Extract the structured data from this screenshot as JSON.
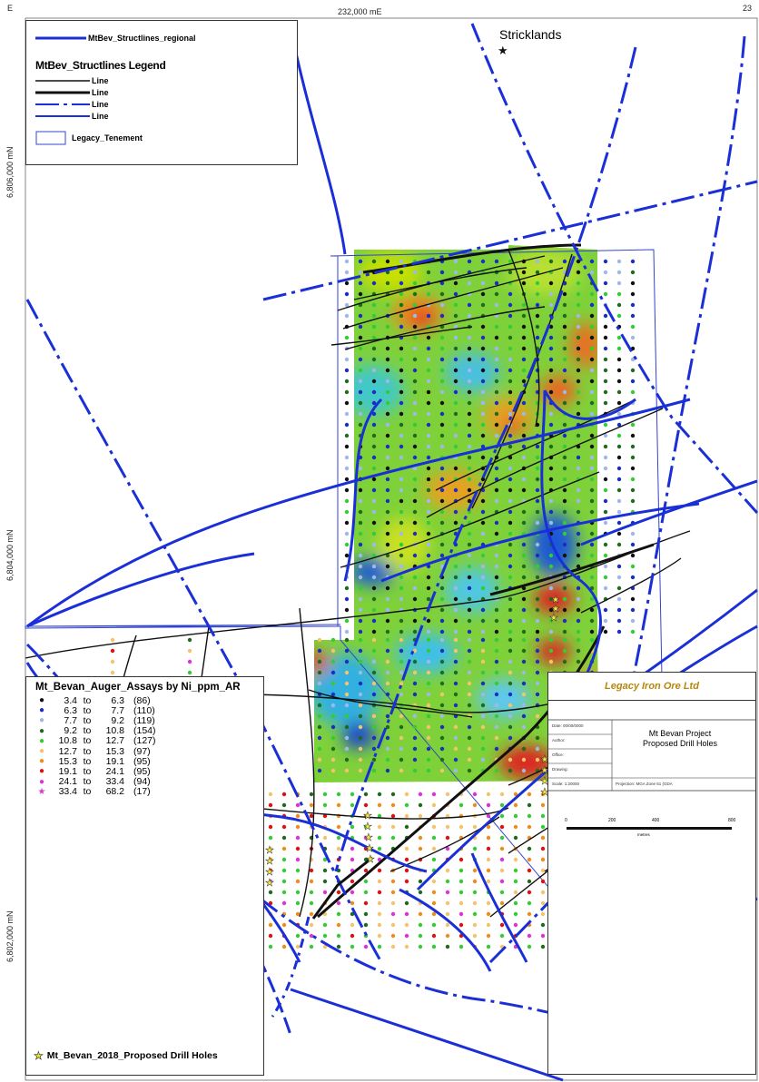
{
  "map": {
    "coordinate_labels": {
      "top_left": "E",
      "top_center": "232,000 mE",
      "top_right": "23",
      "left_upper": "6,806,000 mN",
      "left_middle": "6,804,000 mN",
      "left_lower": "6,802,000 mN"
    },
    "place_label": "Stricklands",
    "colors": {
      "structure_blue": "#1a2fd6",
      "structure_black": "#111111",
      "tenement_blue": "#3344cc"
    }
  },
  "structure_legend": {
    "regional_label": "MtBev_Structlines_regional",
    "title": "MtBev_Structlines Legend",
    "items": [
      "Line",
      "Line",
      "Line",
      "Line"
    ],
    "tenement_label": "Legacy_Tenement"
  },
  "assay_legend": {
    "title": "Mt_Bevan_Auger_Assays by Ni_ppm_AR",
    "classes": [
      {
        "from": "3.4",
        "to_word": "to",
        "to": "6.3",
        "count": "(86)",
        "color": "#111111",
        "symbol": "●"
      },
      {
        "from": "6.3",
        "to_word": "to",
        "to": "7.7",
        "count": "(110)",
        "color": "#1a2fbf",
        "symbol": "●"
      },
      {
        "from": "7.7",
        "to_word": "to",
        "to": "9.2",
        "count": "(119)",
        "color": "#9fb8e8",
        "symbol": "●"
      },
      {
        "from": "9.2",
        "to_word": "to",
        "to": "10.8",
        "count": "(154)",
        "color": "#1e6b1e",
        "symbol": "●"
      },
      {
        "from": "10.8",
        "to_word": "to",
        "to": "12.7",
        "count": "(127)",
        "color": "#33cc33",
        "symbol": "●"
      },
      {
        "from": "12.7",
        "to_word": "to",
        "to": "15.3",
        "count": "(97)",
        "color": "#f5c36b",
        "symbol": "●"
      },
      {
        "from": "15.3",
        "to_word": "to",
        "to": "19.1",
        "count": "(95)",
        "color": "#f08c1a",
        "symbol": "●"
      },
      {
        "from": "19.1",
        "to_word": "to",
        "to": "24.1",
        "count": "(95)",
        "color": "#e01010",
        "symbol": "●"
      },
      {
        "from": "24.1",
        "to_word": "to",
        "to": "33.4",
        "count": "(94)",
        "color": "#e030d8",
        "symbol": "●"
      },
      {
        "from": "33.4",
        "to_word": "to",
        "to": "68.2",
        "count": "(17)",
        "color": "#d640c8",
        "symbol": "★"
      }
    ],
    "drill_label": "Mt_Bevan_2018_Proposed Drill Holes"
  },
  "title_block": {
    "company": "Legacy Iron Ore Ltd",
    "project_line1": "Mt Bevan Project",
    "project_line2": "Proposed Drill Holes",
    "field_date": "Date: 00/00/0000",
    "field_author": "Author:",
    "field_office": "Office:",
    "field_drawing": "Drawing:",
    "field_scale": "Scale: 1:20000",
    "projection": "Projection: MGA Zone 51 (GDA",
    "scale_ticks": [
      "0",
      "200",
      "400",
      "800"
    ],
    "scale_unit": "metres"
  }
}
